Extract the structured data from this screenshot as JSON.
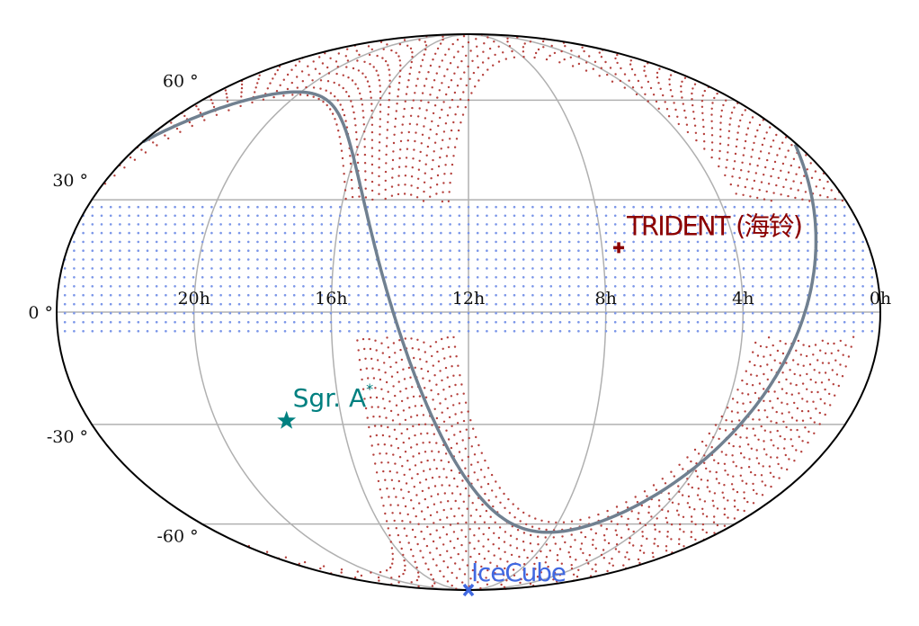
{
  "chart_data": {
    "type": "scatter",
    "projection": "mollweide",
    "ra_axis": {
      "direction": "decreasing-left-to-right",
      "tick_labels": [
        "20h",
        "16h",
        "12h",
        "8h",
        "4h",
        "0h"
      ],
      "tick_values_hours": [
        20,
        16,
        12,
        8,
        4,
        0
      ]
    },
    "dec_axis": {
      "tick_labels": [
        "60 °",
        "30 °",
        "0 °",
        "-30 °",
        "-60 °"
      ],
      "tick_values_deg": [
        60,
        30,
        0,
        -30,
        -60
      ]
    },
    "grid": true,
    "colors": {
      "grid": "#b0b0b0",
      "frame": "#000000",
      "galactic_plane": "#708090",
      "red_region": "#b5403c",
      "blue_region": "#7b96e8",
      "trident": "#8b0000",
      "sgr": "#008080",
      "icecube": "#4169e1"
    },
    "regions": [
      {
        "id": "blue-band",
        "shape": "declination band",
        "dec_range_deg": [
          -5,
          28
        ],
        "color_key": "blue_region"
      },
      {
        "id": "red-band",
        "shape": "great-circle band",
        "pole_ra_hours": 20,
        "pole_dec_deg": -8.5,
        "half_width_deg": 22,
        "color_key": "red_region"
      }
    ],
    "lines": [
      {
        "id": "galactic-plane",
        "frame": "galactic",
        "b_deg": 0,
        "color_key": "galactic_plane"
      }
    ],
    "markers": [
      {
        "id": "trident",
        "label": "TRIDENT (海铃)",
        "ra_hours": 7.5,
        "dec_deg": 17,
        "symbol": "plus",
        "color_key": "trident"
      },
      {
        "id": "sgr-a",
        "label": "Sgr. A",
        "label_sup": "*",
        "ra_hours": 17.76,
        "dec_deg": -29.0,
        "symbol": "star",
        "color_key": "sgr"
      },
      {
        "id": "icecube",
        "label": "IceCube",
        "ra_hours": 12,
        "dec_deg": -90,
        "symbol": "x",
        "color_key": "icecube"
      }
    ]
  }
}
